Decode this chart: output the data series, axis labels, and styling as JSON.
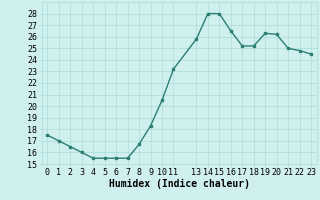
{
  "x": [
    0,
    1,
    2,
    3,
    4,
    5,
    6,
    7,
    8,
    9,
    10,
    11,
    13,
    14,
    15,
    16,
    17,
    18,
    19,
    20,
    21,
    22,
    23
  ],
  "y": [
    17.5,
    17.0,
    16.5,
    16.0,
    15.5,
    15.5,
    15.5,
    15.5,
    16.7,
    18.3,
    20.5,
    23.2,
    25.8,
    28.0,
    28.0,
    26.5,
    25.2,
    25.2,
    26.3,
    26.2,
    25.0,
    24.8,
    24.5
  ],
  "line_color": "#2d7f72",
  "marker": "s",
  "marker_size": 2,
  "bg_color": "#cff0ee",
  "grid_color": "#aaddd8",
  "xlabel": "Humidex (Indice chaleur)",
  "ylim": [
    15,
    29
  ],
  "xlim": [
    -0.5,
    23.5
  ],
  "yticks": [
    15,
    16,
    17,
    18,
    19,
    20,
    21,
    22,
    23,
    24,
    25,
    26,
    27,
    28
  ],
  "xticks": [
    0,
    1,
    2,
    3,
    4,
    5,
    6,
    7,
    8,
    9,
    10,
    11,
    13,
    14,
    15,
    16,
    17,
    18,
    19,
    20,
    21,
    22,
    23
  ],
  "xlabel_fontsize": 7,
  "tick_fontsize": 6,
  "line_width": 1.0
}
